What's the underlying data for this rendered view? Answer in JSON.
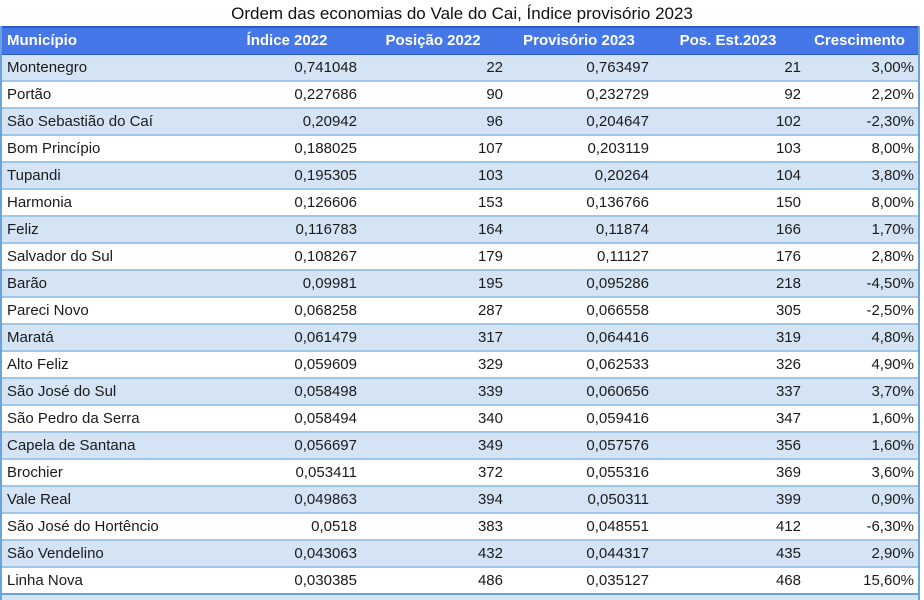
{
  "title": "Ordem das economias do Vale do Cai, Índice provisório 2023",
  "colors": {
    "header_bg": "#4677e8",
    "header_border": "#2d5ac6",
    "band_row": "#d4e4f4",
    "grid_line": "#9fc5e8",
    "outer_border": "#6ba3dc",
    "header_text": "#ffffff",
    "body_text": "#1b1b1b"
  },
  "chart_data": {
    "type": "table",
    "title": "Ordem das economias do Vale do Cai, Índice provisório 2023",
    "columns": [
      "Município",
      "Índice 2022",
      "Posição 2022",
      "Provisório 2023",
      "Pos. Est.2023",
      "Crescimento"
    ],
    "rows": [
      [
        "Montenegro",
        "0,741048",
        "22",
        "0,763497",
        "21",
        "3,00%"
      ],
      [
        "Portão",
        "0,227686",
        "90",
        "0,232729",
        "92",
        "2,20%"
      ],
      [
        "São Sebastião do Caí",
        "0,20942",
        "96",
        "0,204647",
        "102",
        "-2,30%"
      ],
      [
        "Bom Princípio",
        "0,188025",
        "107",
        "0,203119",
        "103",
        "8,00%"
      ],
      [
        "Tupandi",
        "0,195305",
        "103",
        "0,20264",
        "104",
        "3,80%"
      ],
      [
        "Harmonia",
        "0,126606",
        "153",
        "0,136766",
        "150",
        "8,00%"
      ],
      [
        "Feliz",
        "0,116783",
        "164",
        "0,11874",
        "166",
        "1,70%"
      ],
      [
        "Salvador do Sul",
        "0,108267",
        "179",
        "0,11127",
        "176",
        "2,80%"
      ],
      [
        "Barão",
        "0,09981",
        "195",
        "0,095286",
        "218",
        "-4,50%"
      ],
      [
        "Pareci Novo",
        "0,068258",
        "287",
        "0,066558",
        "305",
        "-2,50%"
      ],
      [
        "Maratá",
        "0,061479",
        "317",
        "0,064416",
        "319",
        "4,80%"
      ],
      [
        "Alto Feliz",
        "0,059609",
        "329",
        "0,062533",
        "326",
        "4,90%"
      ],
      [
        "São José do Sul",
        "0,058498",
        "339",
        "0,060656",
        "337",
        "3,70%"
      ],
      [
        "São Pedro da Serra",
        "0,058494",
        "340",
        "0,059416",
        "347",
        "1,60%"
      ],
      [
        "Capela de Santana",
        "0,056697",
        "349",
        "0,057576",
        "356",
        "1,60%"
      ],
      [
        "Brochier",
        "0,053411",
        "372",
        "0,055316",
        "369",
        "3,60%"
      ],
      [
        "Vale Real",
        "0,049863",
        "394",
        "0,050311",
        "399",
        "0,90%"
      ],
      [
        "São José do Hortêncio",
        "0,0518",
        "383",
        "0,048551",
        "412",
        "-6,30%"
      ],
      [
        "São Vendelino",
        "0,043063",
        "432",
        "0,044317",
        "435",
        "2,90%"
      ],
      [
        "Linha Nova",
        "0,030385",
        "486",
        "0,035127",
        "468",
        "15,60%"
      ]
    ]
  }
}
